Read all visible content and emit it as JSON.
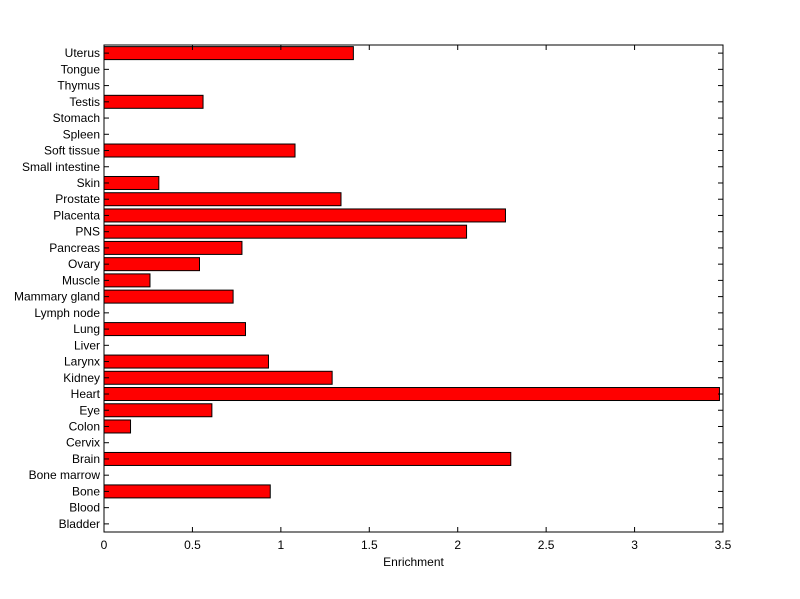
{
  "chart_data": {
    "type": "bar",
    "orientation": "horizontal",
    "title": "",
    "xlabel": "Enrichment",
    "ylabel": "",
    "xlim": [
      0,
      3.5
    ],
    "xticks": [
      0,
      0.5,
      1,
      1.5,
      2,
      2.5,
      3,
      3.5
    ],
    "xtick_labels": [
      "0",
      "0.5",
      "1",
      "1.5",
      "2",
      "2.5",
      "3",
      "3.5"
    ],
    "grid": false,
    "legend": "none",
    "bar_color": "#ff0000",
    "categories": [
      "Uterus",
      "Tongue",
      "Thymus",
      "Testis",
      "Stomach",
      "Spleen",
      "Soft tissue",
      "Small intestine",
      "Skin",
      "Prostate",
      "Placenta",
      "PNS",
      "Pancreas",
      "Ovary",
      "Muscle",
      "Mammary gland",
      "Lymph node",
      "Lung",
      "Liver",
      "Larynx",
      "Kidney",
      "Heart",
      "Eye",
      "Colon",
      "Cervix",
      "Brain",
      "Bone marrow",
      "Bone",
      "Blood",
      "Bladder"
    ],
    "values": [
      1.41,
      0,
      0,
      0.56,
      0,
      0,
      1.08,
      0,
      0.31,
      1.34,
      2.27,
      2.05,
      0.78,
      0.54,
      0.26,
      0.73,
      0,
      0.8,
      0,
      0.93,
      1.29,
      3.48,
      0.61,
      0.15,
      0,
      2.3,
      0,
      0.94,
      0,
      0
    ]
  }
}
